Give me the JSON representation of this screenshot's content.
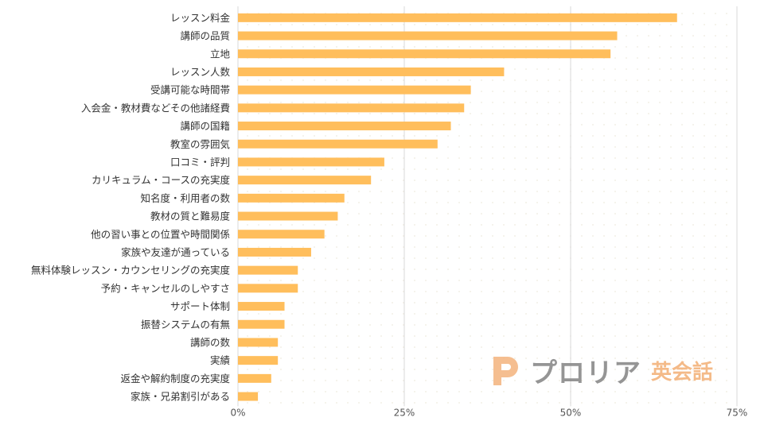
{
  "chart_data": {
    "type": "bar",
    "orientation": "horizontal",
    "categories": [
      "レッスン料金",
      "講師の品質",
      "立地",
      "レッスン人数",
      "受講可能な時間帯",
      "入会金・教材費などその他諸経費",
      "講師の国籍",
      "教室の雰囲気",
      "口コミ・評判",
      "カリキュラム・コースの充実度",
      "知名度・利用者の数",
      "教材の質と難易度",
      "他の習い事との位置や時間関係",
      "家族や友達が通っている",
      "無料体験レッスン・カウンセリングの充実度",
      "予約・キャンセルのしやすさ",
      "サポート体制",
      "振替システムの有無",
      "講師の数",
      "実績",
      "返金や解約制度の充実度",
      "家族・兄弟割引がある"
    ],
    "values": [
      66,
      57,
      56,
      40,
      35,
      34,
      32,
      30,
      22,
      20,
      16,
      15,
      13,
      11,
      9,
      9,
      7,
      7,
      6,
      6,
      5,
      3
    ],
    "xlim": [
      0,
      75
    ],
    "xticks": [
      0,
      25,
      50,
      75
    ],
    "xtick_labels": [
      "0%",
      "25%",
      "50%",
      "75%"
    ],
    "bar_color": "#ffbe5c",
    "grid_color": "#d9d9d9",
    "title": "",
    "xlabel": "",
    "ylabel": ""
  },
  "logo": {
    "brand": "プロリア",
    "sub": "英会話",
    "mark_color": "#f3b37c"
  }
}
